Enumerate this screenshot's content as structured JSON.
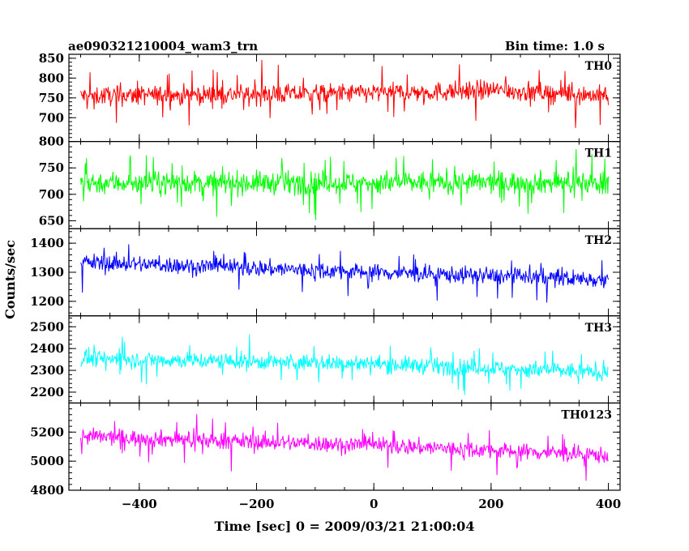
{
  "header": {
    "left": "ae090321210004_wam3_trn",
    "right": "Bin time: 1.0 s"
  },
  "chart_data": {
    "type": "line",
    "xlabel": "Time [sec] 0 = 2009/03/21 21:00:04",
    "ylabel": "Counts/sec",
    "xlim": [
      -520,
      420
    ],
    "xticks": [
      -400,
      -200,
      0,
      200,
      400
    ],
    "x_range": [
      -500,
      400
    ],
    "bin_time": 1.0,
    "panels": [
      {
        "name": "TH0",
        "color": "#ff0000",
        "ylim": [
          640,
          860
        ],
        "yticks": [
          700,
          750,
          800,
          850
        ],
        "mean_segments": [
          [
            -500,
            755
          ],
          [
            -100,
            760
          ],
          [
            100,
            765
          ],
          [
            200,
            770
          ],
          [
            400,
            755
          ]
        ],
        "noise": 32,
        "spike": 55
      },
      {
        "name": "TH1",
        "color": "#00ff00",
        "ylim": [
          635,
          800
        ],
        "yticks": [
          650,
          700,
          750,
          800
        ],
        "mean_segments": [
          [
            -500,
            722
          ],
          [
            400,
            722
          ]
        ],
        "noise": 28,
        "spike": 50
      },
      {
        "name": "TH2",
        "color": "#0000ff",
        "ylim": [
          1150,
          1450
        ],
        "yticks": [
          1200,
          1300,
          1400
        ],
        "mean_segments": [
          [
            -500,
            1335
          ],
          [
            0,
            1300
          ],
          [
            400,
            1275
          ]
        ],
        "noise": 38,
        "spike": 70
      },
      {
        "name": "TH3",
        "color": "#00ffff",
        "ylim": [
          2150,
          2550
        ],
        "yticks": [
          2200,
          2300,
          2400,
          2500
        ],
        "mean_segments": [
          [
            -500,
            2355
          ],
          [
            0,
            2330
          ],
          [
            400,
            2290
          ]
        ],
        "noise": 50,
        "spike": 90
      },
      {
        "name": "TH0123",
        "color": "#ff00ff",
        "ylim": [
          4800,
          5400
        ],
        "yticks": [
          4800,
          5000,
          5200
        ],
        "mean_segments": [
          [
            -500,
            5170
          ],
          [
            0,
            5110
          ],
          [
            400,
            5040
          ]
        ],
        "noise": 75,
        "spike": 140
      }
    ]
  }
}
